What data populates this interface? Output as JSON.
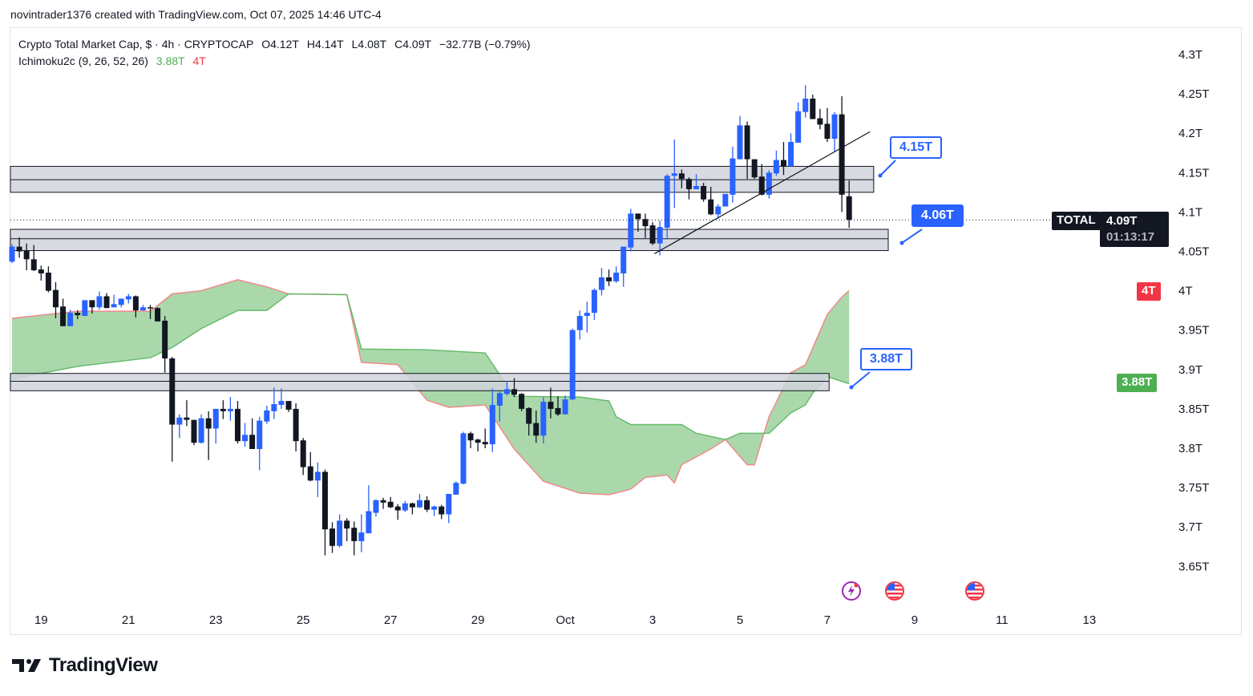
{
  "attribution": "novintrader1376 created with TradingView.com, Oct 07, 2025 14:46 UTC-4",
  "legend": {
    "title": "Crypto Total Market Cap, $ · 4h · CRYPTOCAP",
    "open": "O4.12T",
    "high": "H4.14T",
    "low": "L4.08T",
    "close": "C4.09T",
    "change": "−32.77B (−0.79%)",
    "indicator": "Ichimoku2c (9, 26, 52, 26)",
    "indicator_val1": "3.88T",
    "indicator_val2": "4T"
  },
  "tags": {
    "symbol": "TOTAL",
    "last_price": "4.09T",
    "countdown": "01:13:17",
    "cloud_upper": "4T",
    "cloud_lower": "3.88T"
  },
  "callouts": {
    "c1": "4.15T",
    "c2": "4.06T",
    "c3": "3.88T"
  },
  "footer": {
    "brand": "TradingView"
  },
  "events": [
    "lightning-event-icon",
    "us-flag-event-icon",
    "us-flag-event-icon"
  ],
  "colors": {
    "up": "#2962ff",
    "down": "#131722",
    "cloud": "#a5d6a7",
    "span_red": "#ef8a8a",
    "span_green": "#66bb6a",
    "zone": "#d1d4dc",
    "tag_red": "#f23645",
    "tag_green": "#4caf50"
  },
  "chart_data": {
    "type": "candlestick",
    "interval": "4h",
    "ylim": [
      3.63,
      4.32
    ],
    "y_unit": "T",
    "y_ticks": [
      "4.3T",
      "4.25T",
      "4.2T",
      "4.15T",
      "4.1T",
      "4.05T",
      "4T",
      "3.95T",
      "3.9T",
      "3.85T",
      "3.8T",
      "3.75T",
      "3.7T",
      "3.65T"
    ],
    "y_tick_values": [
      4.3,
      4.25,
      4.2,
      4.15,
      4.1,
      4.05,
      4.0,
      3.95,
      3.9,
      3.85,
      3.8,
      3.75,
      3.7,
      3.65
    ],
    "x_ticks": [
      "19",
      "21",
      "23",
      "25",
      "27",
      "29",
      "Oct",
      "3",
      "5",
      "7",
      "9",
      "11",
      "13"
    ],
    "candles_ohlc": [
      [
        4.037,
        4.059,
        4.035,
        4.056
      ],
      [
        4.056,
        4.068,
        4.042,
        4.05
      ],
      [
        4.051,
        4.06,
        4.026,
        4.04
      ],
      [
        4.04,
        4.058,
        4.025,
        4.026
      ],
      [
        4.027,
        4.032,
        4.013,
        4.022
      ],
      [
        4.023,
        4.031,
        3.998,
        4.0
      ],
      [
        4.001,
        4.011,
        3.965,
        3.979
      ],
      [
        3.98,
        3.99,
        3.955,
        3.955
      ],
      [
        3.955,
        3.976,
        3.955,
        3.972
      ],
      [
        3.972,
        3.975,
        3.964,
        3.969
      ],
      [
        3.968,
        3.988,
        3.968,
        3.988
      ],
      [
        3.988,
        3.988,
        3.971,
        3.979
      ],
      [
        3.979,
        3.999,
        3.976,
        3.993
      ],
      [
        3.993,
        3.997,
        3.978,
        3.978
      ],
      [
        3.979,
        3.995,
        3.979,
        3.983
      ],
      [
        3.982,
        3.99,
        3.979,
        3.99
      ],
      [
        3.989,
        3.996,
        3.984,
        3.993
      ],
      [
        3.993,
        3.994,
        3.966,
        3.975
      ],
      [
        3.975,
        3.982,
        3.975,
        3.979
      ],
      [
        3.979,
        3.982,
        3.964,
        3.978
      ],
      [
        3.978,
        3.979,
        3.961,
        3.961
      ],
      [
        3.962,
        3.968,
        3.896,
        3.914
      ],
      [
        3.914,
        3.916,
        3.783,
        3.83
      ],
      [
        3.83,
        3.843,
        3.813,
        3.839
      ],
      [
        3.839,
        3.861,
        3.828,
        3.836
      ],
      [
        3.836,
        3.836,
        3.804,
        3.807
      ],
      [
        3.807,
        3.843,
        3.806,
        3.838
      ],
      [
        3.838,
        3.847,
        3.785,
        3.825
      ],
      [
        3.825,
        3.85,
        3.806,
        3.85
      ],
      [
        3.85,
        3.861,
        3.837,
        3.847
      ],
      [
        3.847,
        3.865,
        3.835,
        3.85
      ],
      [
        3.85,
        3.86,
        3.806,
        3.809
      ],
      [
        3.809,
        3.832,
        3.802,
        3.817
      ],
      [
        3.817,
        3.838,
        3.799,
        3.799
      ],
      [
        3.799,
        3.84,
        3.772,
        3.835
      ],
      [
        3.834,
        3.854,
        3.831,
        3.848
      ],
      [
        3.847,
        3.877,
        3.837,
        3.856
      ],
      [
        3.855,
        3.876,
        3.85,
        3.86
      ],
      [
        3.86,
        3.86,
        3.846,
        3.849
      ],
      [
        3.85,
        3.857,
        3.796,
        3.809
      ],
      [
        3.81,
        3.813,
        3.766,
        3.776
      ],
      [
        3.777,
        3.795,
        3.758,
        3.759
      ],
      [
        3.759,
        3.782,
        3.738,
        3.77
      ],
      [
        3.77,
        3.773,
        3.664,
        3.697
      ],
      [
        3.698,
        3.706,
        3.667,
        3.676
      ],
      [
        3.676,
        3.716,
        3.674,
        3.708
      ],
      [
        3.708,
        3.711,
        3.682,
        3.698
      ],
      [
        3.699,
        3.707,
        3.664,
        3.682
      ],
      [
        3.682,
        3.716,
        3.668,
        3.693
      ],
      [
        3.692,
        3.753,
        3.692,
        3.72
      ],
      [
        3.718,
        3.735,
        3.713,
        3.734
      ],
      [
        3.734,
        3.737,
        3.723,
        3.731
      ],
      [
        3.732,
        3.738,
        3.724,
        3.725
      ],
      [
        3.726,
        3.729,
        3.709,
        3.721
      ],
      [
        3.721,
        3.733,
        3.719,
        3.73
      ],
      [
        3.73,
        3.731,
        3.716,
        3.725
      ],
      [
        3.725,
        3.742,
        3.724,
        3.734
      ],
      [
        3.734,
        3.739,
        3.719,
        3.722
      ],
      [
        3.722,
        3.727,
        3.714,
        3.726
      ],
      [
        3.726,
        3.728,
        3.71,
        3.716
      ],
      [
        3.716,
        3.742,
        3.705,
        3.742
      ],
      [
        3.741,
        3.758,
        3.741,
        3.756
      ],
      [
        3.755,
        3.821,
        3.754,
        3.819
      ],
      [
        3.819,
        3.821,
        3.8,
        3.81
      ],
      [
        3.811,
        3.812,
        3.796,
        3.807
      ],
      [
        3.808,
        3.825,
        3.8,
        3.805
      ],
      [
        3.805,
        3.876,
        3.795,
        3.855
      ],
      [
        3.854,
        3.872,
        3.834,
        3.87
      ],
      [
        3.869,
        3.885,
        3.867,
        3.875
      ],
      [
        3.875,
        3.889,
        3.865,
        3.868
      ],
      [
        3.869,
        3.87,
        3.847,
        3.85
      ],
      [
        3.851,
        3.852,
        3.816,
        3.831
      ],
      [
        3.832,
        3.848,
        3.807,
        3.816
      ],
      [
        3.816,
        3.865,
        3.806,
        3.859
      ],
      [
        3.859,
        3.877,
        3.838,
        3.85
      ],
      [
        3.851,
        3.866,
        3.841,
        3.843
      ],
      [
        3.843,
        3.867,
        3.843,
        3.862
      ],
      [
        3.862,
        3.952,
        3.861,
        3.95
      ],
      [
        3.95,
        3.975,
        3.938,
        3.968
      ],
      [
        3.968,
        3.986,
        3.947,
        3.972
      ],
      [
        3.972,
        4.003,
        3.963,
        4.001
      ],
      [
        4.001,
        4.029,
        3.994,
        4.017
      ],
      [
        4.017,
        4.027,
        4.006,
        4.012
      ],
      [
        4.012,
        4.031,
        4.01,
        4.023
      ],
      [
        4.022,
        4.056,
        4.005,
        4.056
      ],
      [
        4.055,
        4.104,
        4.05,
        4.098
      ],
      [
        4.098,
        4.098,
        4.075,
        4.091
      ],
      [
        4.091,
        4.098,
        4.067,
        4.082
      ],
      [
        4.083,
        4.087,
        4.058,
        4.06
      ],
      [
        4.06,
        4.089,
        4.045,
        4.081
      ],
      [
        4.08,
        4.148,
        4.065,
        4.146
      ],
      [
        4.146,
        4.192,
        4.105,
        4.149
      ],
      [
        4.149,
        4.154,
        4.13,
        4.142
      ],
      [
        4.142,
        4.144,
        4.116,
        4.129
      ],
      [
        4.129,
        4.148,
        4.129,
        4.133
      ],
      [
        4.133,
        4.137,
        4.113,
        4.116
      ],
      [
        4.116,
        4.132,
        4.096,
        4.097
      ],
      [
        4.097,
        4.11,
        4.091,
        4.107
      ],
      [
        4.107,
        4.123,
        4.107,
        4.123
      ],
      [
        4.122,
        4.183,
        4.112,
        4.168
      ],
      [
        4.167,
        4.222,
        4.167,
        4.21
      ],
      [
        4.21,
        4.215,
        4.142,
        4.167
      ],
      [
        4.167,
        4.167,
        4.142,
        4.144
      ],
      [
        4.145,
        4.161,
        4.121,
        4.122
      ],
      [
        4.122,
        4.153,
        4.117,
        4.15
      ],
      [
        4.149,
        4.178,
        4.146,
        4.166
      ],
      [
        4.166,
        4.189,
        4.147,
        4.158
      ],
      [
        4.158,
        4.2,
        4.158,
        4.189
      ],
      [
        4.188,
        4.239,
        4.188,
        4.228
      ],
      [
        4.227,
        4.261,
        4.22,
        4.244
      ],
      [
        4.244,
        4.249,
        4.218,
        4.218
      ],
      [
        4.219,
        4.231,
        4.205,
        4.211
      ],
      [
        4.212,
        4.232,
        4.189,
        4.193
      ],
      [
        4.193,
        4.227,
        4.177,
        4.224
      ],
      [
        4.224,
        4.247,
        4.1,
        4.122
      ],
      [
        4.12,
        4.14,
        4.08,
        4.09
      ]
    ],
    "ichimoku_cloud": {
      "span_red": [
        [
          0,
          3.965
        ],
        [
          9,
          3.974
        ],
        [
          19,
          3.974
        ],
        [
          22,
          3.996
        ],
        [
          26,
          4.0
        ],
        [
          31,
          4.014
        ],
        [
          35,
          4.005
        ],
        [
          38,
          3.996
        ],
        [
          46,
          3.995
        ],
        [
          48,
          3.909
        ],
        [
          53,
          3.906
        ],
        [
          57,
          3.861
        ],
        [
          60,
          3.852
        ],
        [
          65,
          3.855
        ],
        [
          69,
          3.799
        ],
        [
          73,
          3.758
        ],
        [
          78,
          3.743
        ],
        [
          82,
          3.741
        ],
        [
          85,
          3.748
        ],
        [
          87,
          3.763
        ],
        [
          90,
          3.766
        ],
        [
          91,
          3.756
        ],
        [
          92,
          3.779
        ],
        [
          96,
          3.799
        ],
        [
          98,
          3.811
        ],
        [
          101,
          3.779
        ],
        [
          102,
          3.779
        ],
        [
          104,
          3.84
        ],
        [
          107,
          3.896
        ],
        [
          109,
          3.906
        ],
        [
          112,
          3.97
        ],
        [
          114,
          3.992
        ],
        [
          115,
          4.0
        ]
      ],
      "span_green": [
        [
          0,
          3.888
        ],
        [
          9,
          3.904
        ],
        [
          19,
          3.915
        ],
        [
          22,
          3.928
        ],
        [
          26,
          3.952
        ],
        [
          31,
          3.975
        ],
        [
          35,
          3.975
        ],
        [
          38,
          3.996
        ],
        [
          46,
          3.995
        ],
        [
          48,
          3.926
        ],
        [
          57,
          3.925
        ],
        [
          65,
          3.921
        ],
        [
          69,
          3.866
        ],
        [
          78,
          3.865
        ],
        [
          82,
          3.86
        ],
        [
          83,
          3.84
        ],
        [
          85,
          3.83
        ],
        [
          92,
          3.83
        ],
        [
          94,
          3.819
        ],
        [
          98,
          3.811
        ],
        [
          100,
          3.819
        ],
        [
          104,
          3.819
        ],
        [
          107,
          3.845
        ],
        [
          109,
          3.855
        ],
        [
          110,
          3.87
        ],
        [
          112,
          3.891
        ],
        [
          115,
          3.882
        ]
      ]
    },
    "zones": [
      {
        "top": 4.158,
        "mid": 4.141,
        "bottom": 4.125,
        "end": "2025-10-08 01:30"
      },
      {
        "top": 4.078,
        "mid": 4.066,
        "bottom": 4.051,
        "end": "2025-10-08 09:30"
      },
      {
        "top": 3.895,
        "mid": 3.885,
        "bottom": 3.873,
        "end": "2025-10-07 01:00"
      }
    ],
    "trendline": {
      "from": [
        "2025-10-03 01:00",
        4.047
      ],
      "to": [
        "2025-10-07 23:30",
        4.202
      ]
    },
    "last_price_line": 4.09
  }
}
